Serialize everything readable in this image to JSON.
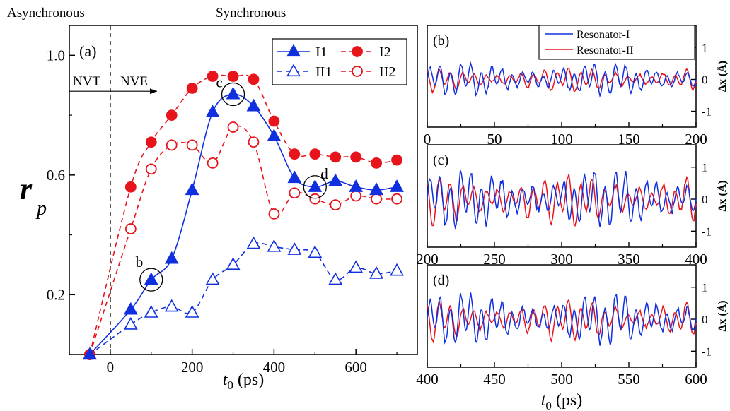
{
  "colors": {
    "blue": "#1030e0",
    "red": "#e8141c",
    "axis": "#000000"
  },
  "chart_data": [
    {
      "type": "line",
      "panel_label": "(a)",
      "xlabel_italic": "t",
      "xlabel_sub": "0",
      "xlabel_rest": " (ps)",
      "ylabel_italic": "r",
      "ylabel_sub": "p",
      "xlim": [
        -100,
        750
      ],
      "ylim": [
        0,
        1.1
      ],
      "xticks": [
        0,
        200,
        400,
        600
      ],
      "yticks": [
        0.2,
        0.6,
        1.0
      ],
      "ytick_labels": [
        "0.2",
        "0.6",
        "1.0"
      ],
      "top_labels": {
        "left": "Asynchronous",
        "right": "Synchronous"
      },
      "arrow_labels": {
        "left": "NVT",
        "right": "NVE"
      },
      "arrow_y": 0.88,
      "vline_x": 0,
      "series": [
        {
          "name": "I1",
          "color": "#1030e0",
          "marker": "triangle",
          "fill": true,
          "dash": false,
          "x": [
            -50,
            50,
            100,
            150,
            200,
            250,
            300,
            350,
            400,
            450,
            500,
            550,
            600,
            650,
            700
          ],
          "y": [
            0.0,
            0.15,
            0.25,
            0.32,
            0.55,
            0.81,
            0.87,
            0.83,
            0.73,
            0.59,
            0.56,
            0.58,
            0.56,
            0.55,
            0.56
          ]
        },
        {
          "name": "II1",
          "color": "#1030e0",
          "marker": "triangle",
          "fill": false,
          "dash": true,
          "x": [
            -50,
            50,
            100,
            150,
            200,
            250,
            300,
            350,
            400,
            450,
            500,
            550,
            600,
            650,
            700
          ],
          "y": [
            0.0,
            0.1,
            0.14,
            0.16,
            0.14,
            0.25,
            0.3,
            0.37,
            0.36,
            0.35,
            0.34,
            0.25,
            0.29,
            0.27,
            0.28
          ]
        },
        {
          "name": "I2",
          "color": "#e8141c",
          "marker": "circle",
          "fill": true,
          "dash": true,
          "x": [
            -50,
            50,
            100,
            150,
            200,
            250,
            300,
            350,
            400,
            450,
            500,
            550,
            600,
            650,
            700
          ],
          "y": [
            0.0,
            0.56,
            0.71,
            0.8,
            0.89,
            0.93,
            0.93,
            0.92,
            0.78,
            0.67,
            0.67,
            0.66,
            0.66,
            0.64,
            0.65
          ]
        },
        {
          "name": "II2",
          "color": "#e8141c",
          "marker": "circle",
          "fill": false,
          "dash": true,
          "x": [
            -50,
            50,
            100,
            150,
            200,
            250,
            300,
            350,
            400,
            450,
            500,
            550,
            600,
            650,
            700
          ],
          "y": [
            0.0,
            0.42,
            0.62,
            0.7,
            0.7,
            0.64,
            0.76,
            0.71,
            0.47,
            0.54,
            0.52,
            0.5,
            0.53,
            0.52,
            0.52
          ]
        }
      ],
      "circled_points": [
        {
          "label": "b",
          "x": 100,
          "y": 0.25
        },
        {
          "label": "c",
          "x": 300,
          "y": 0.87
        },
        {
          "label": "d",
          "x": 500,
          "y": 0.56
        }
      ]
    },
    {
      "type": "line",
      "panel_label": "(b)",
      "xlim": [
        0,
        200
      ],
      "xticks": [
        0,
        50,
        100,
        150,
        200
      ],
      "ylim": [
        -1.5,
        1.7
      ],
      "yticks": [
        -1,
        0,
        1
      ],
      "ylabel": "Δx (Å)",
      "series_names": [
        "Resonator-I",
        "Resonator-II"
      ],
      "amplitude": [
        0.5,
        0.35
      ]
    },
    {
      "type": "line",
      "panel_label": "(c)",
      "xlim": [
        200,
        400
      ],
      "xticks": [
        200,
        250,
        300,
        350,
        400
      ],
      "ylim": [
        -1.5,
        1.7
      ],
      "yticks": [
        -1,
        0,
        1
      ],
      "ylabel": "Δx (Å)",
      "series_names": [
        "Resonator-I",
        "Resonator-II"
      ],
      "amplitude": [
        0.9,
        0.75
      ]
    },
    {
      "type": "line",
      "panel_label": "(d)",
      "xlim": [
        400,
        600
      ],
      "xticks": [
        400,
        450,
        500,
        550,
        600
      ],
      "ylim": [
        -1.5,
        1.7
      ],
      "yticks": [
        -1,
        0,
        1
      ],
      "ylabel": "Δx (Å)",
      "series_names": [
        "Resonator-I",
        "Resonator-II"
      ],
      "amplitude": [
        0.8,
        0.6
      ],
      "xlabel_italic": "t",
      "xlabel_sub": "0",
      "xlabel_rest": " (ps)"
    }
  ]
}
